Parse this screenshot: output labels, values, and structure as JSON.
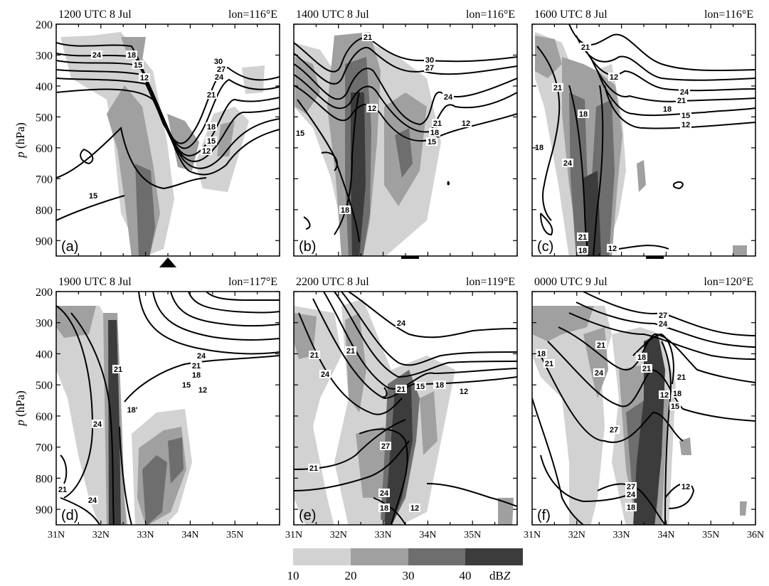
{
  "figure": {
    "y_axis_label_italic": "p",
    "y_axis_label_rest": " (hPa)",
    "pressure_ticks": [
      "200",
      "300",
      "400",
      "500",
      "600",
      "700",
      "800",
      "900"
    ],
    "lat_ticks_bottom_row": [
      [
        "31N",
        "32N",
        "33N",
        "34N",
        "35N"
      ],
      [
        "31N",
        "32N",
        "33N",
        "34N",
        "35N"
      ],
      [
        "31N",
        "32N",
        "33N",
        "34N",
        "35N",
        "36N"
      ]
    ],
    "panels": [
      {
        "time": "1200 UTC 8 Jul",
        "lon": "lon=116°E",
        "tag": "a",
        "contour_labels": [
          "24",
          "18",
          "15",
          "12",
          "30",
          "27",
          "24",
          "21",
          "18",
          "15",
          "12",
          "15"
        ]
      },
      {
        "time": "1400 UTC 8 Jul",
        "lon": "lon=116°E",
        "tag": "b",
        "contour_labels": [
          "21",
          "30",
          "27",
          "24",
          "12",
          "21",
          "18",
          "15",
          "12",
          "15",
          "18"
        ]
      },
      {
        "time": "1600 UTC 8 Jul",
        "lon": "lon=116°E",
        "tag": "c",
        "contour_labels": [
          "21",
          "12",
          "24",
          "21",
          "18",
          "15",
          "12",
          "21",
          "18",
          "18",
          "24",
          "21",
          "18",
          "12"
        ]
      },
      {
        "time": "1900 UTC 8 Jul",
        "lon": "lon=117°E",
        "tag": "d",
        "contour_labels": [
          "24",
          "21",
          "18",
          "15",
          "12",
          "21",
          "18'",
          "24",
          "21",
          "24"
        ]
      },
      {
        "time": "2200 UTC 8 Jul",
        "lon": "lon=119°E",
        "tag": "e",
        "contour_labels": [
          "24",
          "21",
          "21",
          "24",
          "21",
          "15",
          "18",
          "12",
          "27",
          "21",
          "24",
          "18",
          "12"
        ]
      },
      {
        "time": "0000 UTC 9 Jul",
        "lon": "lon=120°E",
        "tag": "f",
        "contour_labels": [
          "27",
          "24",
          "18",
          "21",
          "21",
          "18",
          "21",
          "24",
          "21",
          "12",
          "18",
          "15",
          "27",
          "27",
          "24",
          "12",
          "18"
        ]
      }
    ],
    "colorbar": {
      "ticks": [
        "10",
        "20",
        "30",
        "40"
      ],
      "unit_prefix": "dB",
      "unit_italic": "Z",
      "colors": [
        "#d2d2d2",
        "#a0a0a0",
        "#6e6e6e",
        "#3c3c3c"
      ]
    },
    "markers": [
      "triangle",
      "bar",
      "bar"
    ]
  }
}
